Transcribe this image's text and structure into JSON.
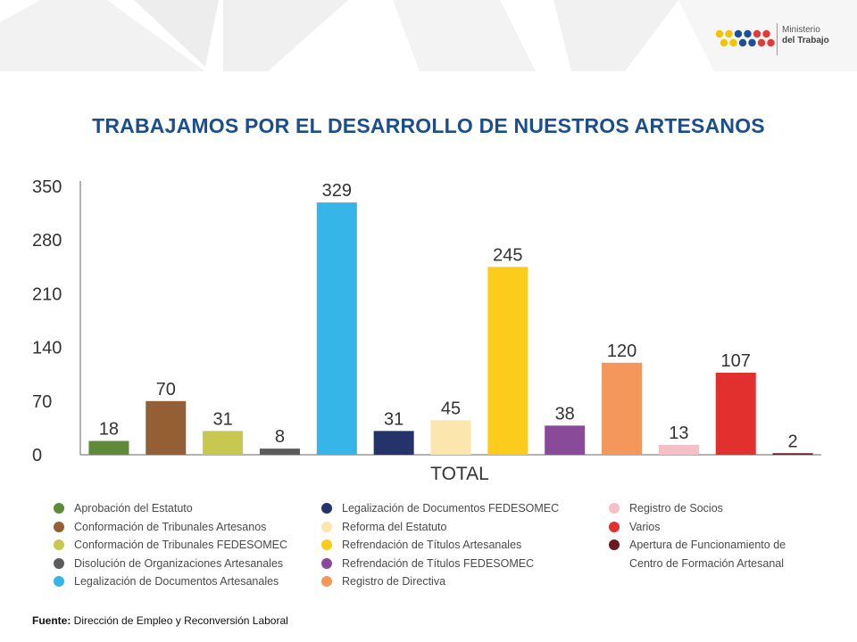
{
  "header": {
    "logo_line1": "Ministerio",
    "logo_line2": "del Trabajo",
    "logo_colors": [
      "#f5c400",
      "#f5c400",
      "#1e4f9a",
      "#1e4f9a",
      "#e53935",
      "#e53935"
    ]
  },
  "title": "TRABAJAMOS POR EL DESARROLLO DE NUESTROS ARTESANOS",
  "chart_data": {
    "type": "bar",
    "xlabel": "TOTAL",
    "ylabel": "",
    "ylim": [
      0,
      350
    ],
    "yticks": [
      0,
      70,
      140,
      210,
      280,
      350
    ],
    "grid": false,
    "legend_position": "bottom",
    "categories": [
      "Aprobación del Estatuto",
      "Conformación de Tribunales Artesanos",
      "Conformación de Tribunales FEDESOMEC",
      "Disolución de Organizaciones Artesanales",
      "Legalización de Documentos Artesanales",
      "Legalización de Documentos FEDESOMEC",
      "Reforma del Estatuto",
      "Refrendación de Títulos Artesanales",
      "Refrendación de Títulos FEDESOMEC",
      "Registro de Directiva",
      "Registro de Socios",
      "Varios",
      "Apertura de Funcionamiento de Centro de Formación Artesanal"
    ],
    "values": [
      18,
      70,
      31,
      8,
      329,
      31,
      45,
      245,
      38,
      120,
      13,
      107,
      2
    ],
    "colors": [
      "#5e8a3a",
      "#955f35",
      "#c7c84f",
      "#5b5b5b",
      "#36b6e8",
      "#25336b",
      "#fbe6ad",
      "#fccc1d",
      "#8a4a9a",
      "#f4975b",
      "#f6bfc6",
      "#e2302f",
      "#6a1a22"
    ]
  },
  "legend": {
    "col1": [
      "Aprobación del Estatuto",
      "Conformación de Tribunales Artesanos",
      "Conformación de Tribunales FEDESOMEC",
      "Disolución de Organizaciones Artesanales",
      "Legalización de Documentos Artesanales"
    ],
    "col2": [
      "Legalización de Documentos FEDESOMEC",
      "Reforma del Estatuto",
      "Refrendación de Títulos Artesanales",
      "Refrendación de Títulos FEDESOMEC",
      "Registro de Directiva"
    ],
    "col3": [
      "Registro de Socios",
      "Varios"
    ],
    "col3_last_line1": "Apertura de Funcionamiento de",
    "col3_last_line2": "Centro de Formación Artesanal"
  },
  "footer": {
    "source_label": "Fuente:",
    "source_text": " Dirección de Empleo y Reconversión Laboral"
  }
}
